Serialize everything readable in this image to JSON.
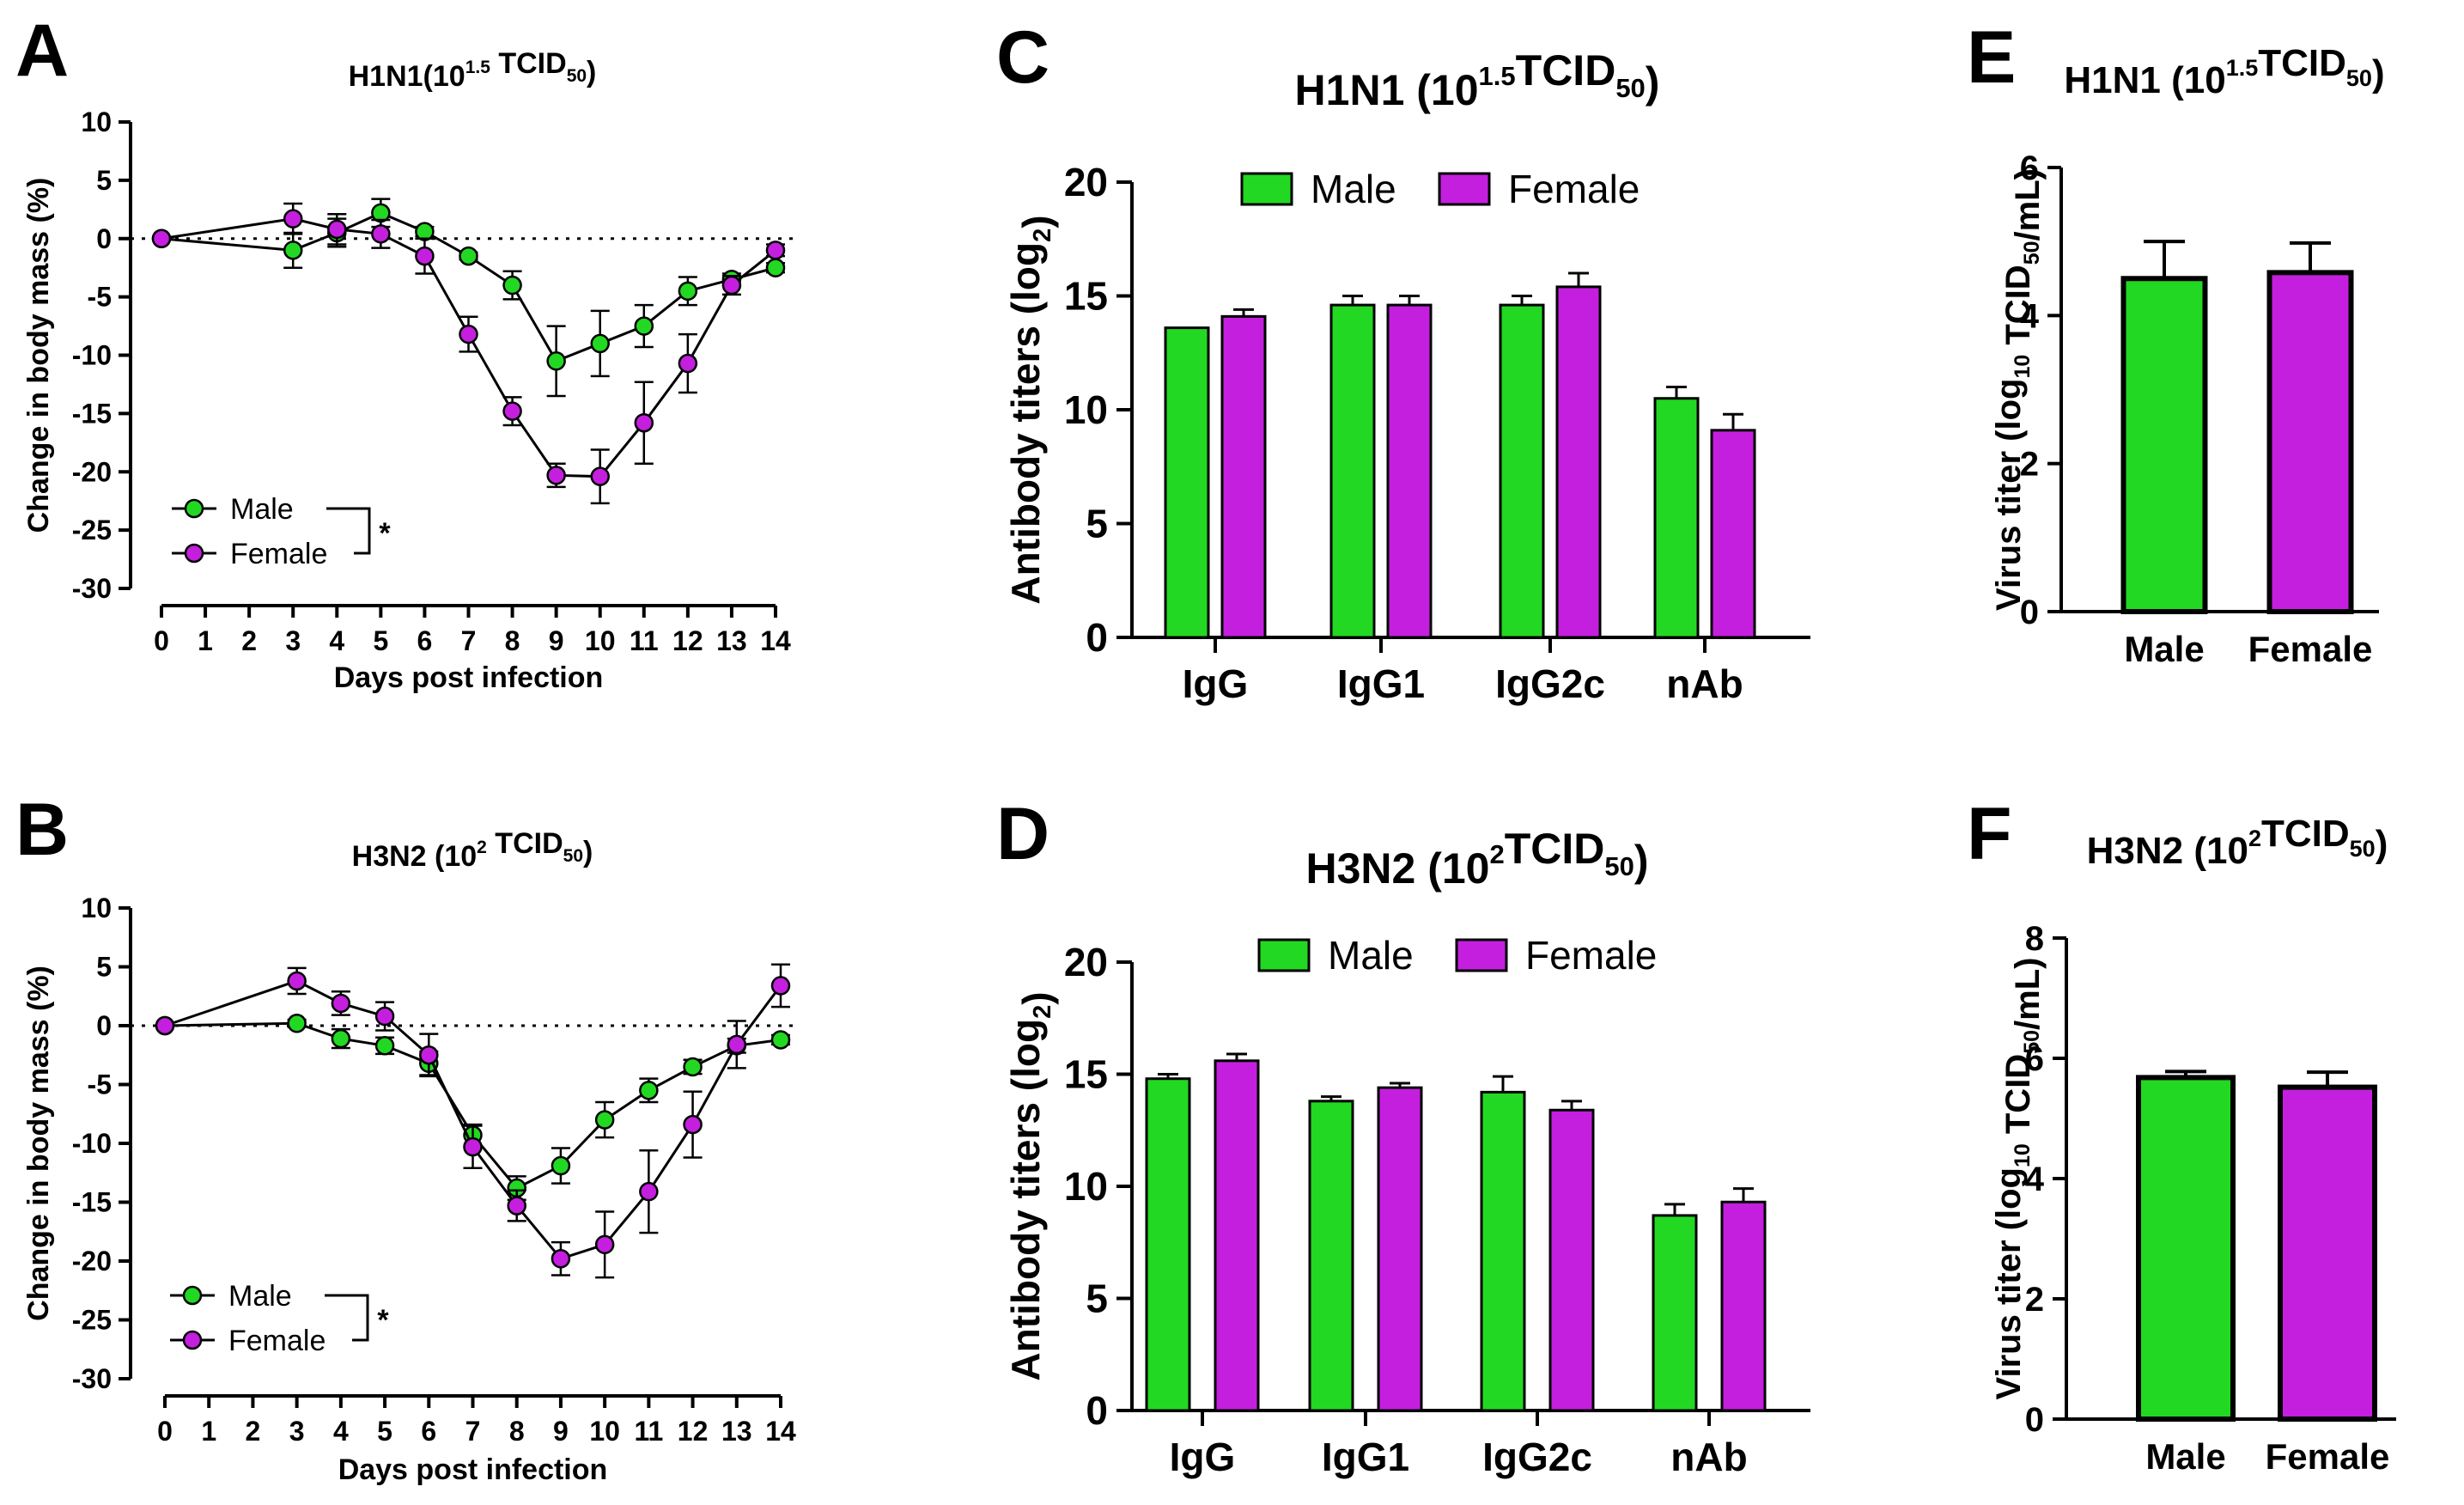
{
  "chart_data": [
    {
      "id": "A",
      "panel_label": "A",
      "type": "line",
      "title": "H1N1(10^1.5 TCID50)",
      "title_parts": {
        "pre": "H1N1(10",
        "sup": "1.5",
        "mid": " TCID",
        "sub": "50",
        "post": ")"
      },
      "xlabel": "Days post infection",
      "ylabel": "Change in body mass (%)",
      "xticks": [
        0,
        1,
        2,
        3,
        4,
        5,
        6,
        7,
        8,
        9,
        10,
        11,
        12,
        13,
        14
      ],
      "yticks": [
        10,
        5,
        0,
        -5,
        -10,
        -15,
        -20,
        -25,
        -30
      ],
      "ylim": [
        -30,
        10
      ],
      "xlim": [
        0,
        14
      ],
      "reference_line": 0,
      "series": [
        {
          "name": "Male",
          "color": "#22d822",
          "x": [
            0,
            3,
            4,
            5,
            6,
            7,
            8,
            9,
            10,
            11,
            12,
            13,
            14
          ],
          "y": [
            0,
            -1,
            0.5,
            2.2,
            0.6,
            -1.5,
            -4,
            -10.5,
            -9,
            -7.5,
            -4.5,
            -3.5,
            -2.5
          ],
          "err": [
            0,
            1.5,
            1.2,
            1.2,
            0.4,
            0.3,
            1.2,
            3,
            2.8,
            1.8,
            1.2,
            0.5,
            0.4
          ]
        },
        {
          "name": "Female",
          "color": "#c41fde",
          "x": [
            0,
            3,
            4,
            5,
            6,
            7,
            8,
            9,
            10,
            11,
            12,
            13,
            14
          ],
          "y": [
            0,
            1.7,
            0.8,
            0.4,
            -1.5,
            -8.2,
            -14.8,
            -20.3,
            -20.4,
            -15.8,
            -10.7,
            -4,
            -1
          ],
          "err": [
            0,
            1.3,
            1.3,
            1.2,
            1.5,
            1.5,
            1.2,
            1,
            2.3,
            3.5,
            2.5,
            0.8,
            0.5
          ]
        }
      ],
      "legend": {
        "entries": [
          "Male",
          "Female"
        ],
        "significance": "*",
        "position": "bottom-left"
      }
    },
    {
      "id": "B",
      "panel_label": "B",
      "type": "line",
      "title": "H3N2 (10^2 TCID50)",
      "title_parts": {
        "pre": "H3N2 (10",
        "sup": "2",
        "mid": " TCID",
        "sub": "50",
        "post": ")"
      },
      "xlabel": "Days post infection",
      "ylabel": "Change in body mass (%)",
      "xticks": [
        0,
        1,
        2,
        3,
        4,
        5,
        6,
        7,
        8,
        9,
        10,
        11,
        12,
        13,
        14
      ],
      "yticks": [
        10,
        5,
        0,
        -5,
        -10,
        -15,
        -20,
        -25,
        -30
      ],
      "ylim": [
        -30,
        10
      ],
      "xlim": [
        0,
        14
      ],
      "reference_line": 0,
      "series": [
        {
          "name": "Male",
          "color": "#22d822",
          "x": [
            0,
            3,
            4,
            5,
            6,
            7,
            8,
            9,
            10,
            11,
            12,
            13,
            14
          ],
          "y": [
            0,
            0.2,
            -1.1,
            -1.7,
            -3.2,
            -9.3,
            -13.8,
            -11.9,
            -8,
            -5.5,
            -3.5,
            -1.7,
            -1.2
          ],
          "err": [
            0,
            0.3,
            0.8,
            0.7,
            1,
            0.9,
            1,
            1.5,
            1.5,
            1,
            0.6,
            0.6,
            0.4
          ]
        },
        {
          "name": "Female",
          "color": "#c41fde",
          "x": [
            0,
            3,
            4,
            5,
            6,
            7,
            8,
            9,
            10,
            11,
            12,
            13,
            14
          ],
          "y": [
            0,
            3.8,
            1.9,
            0.8,
            -2.5,
            -10.3,
            -15.3,
            -19.8,
            -18.6,
            -14.1,
            -8.4,
            -1.6,
            3.4
          ],
          "err": [
            0,
            1.1,
            1,
            1.2,
            1.8,
            1.8,
            1.3,
            1.4,
            2.8,
            3.5,
            2.8,
            2,
            1.8
          ]
        }
      ],
      "legend": {
        "entries": [
          "Male",
          "Female"
        ],
        "significance": "*",
        "position": "bottom-left"
      }
    },
    {
      "id": "C",
      "panel_label": "C",
      "type": "bar",
      "title": "H1N1 (10^1.5TCID50)",
      "title_parts": {
        "pre": "H1N1 (10",
        "sup": "1.5",
        "mid": "TCID",
        "sub": "50",
        "post": ")"
      },
      "categories": [
        "IgG",
        "IgG1",
        "IgG2c",
        "nAb"
      ],
      "ylabel": "Antibody titers (log2)",
      "ylabel_parts": {
        "pre": "Antibody titers (log",
        "sub": "2",
        "post": ")"
      },
      "yticks": [
        0,
        5,
        10,
        15,
        20
      ],
      "ylim": [
        0,
        20
      ],
      "series": [
        {
          "name": "Male",
          "color": "#22d822",
          "values": [
            13.6,
            14.6,
            14.6,
            10.5
          ],
          "err": [
            0,
            0.4,
            0.4,
            0.5
          ]
        },
        {
          "name": "Female",
          "color": "#c41fde",
          "values": [
            14.1,
            14.6,
            15.4,
            9.1
          ],
          "err": [
            0.3,
            0.4,
            0.6,
            0.7
          ]
        }
      ],
      "legend": {
        "entries": [
          "Male",
          "Female"
        ],
        "position": "top"
      }
    },
    {
      "id": "D",
      "panel_label": "D",
      "type": "bar",
      "title": "H3N2 (10^2TCID50)",
      "title_parts": {
        "pre": "H3N2 (10",
        "sup": "2",
        "mid": "TCID",
        "sub": "50",
        "post": ")"
      },
      "categories": [
        "IgG",
        "IgG1",
        "IgG2c",
        "nAb"
      ],
      "ylabel": "Antibody titers (log2)",
      "ylabel_parts": {
        "pre": "Antibody titers (log",
        "sub": "2",
        "post": ")"
      },
      "yticks": [
        0,
        5,
        10,
        15,
        20
      ],
      "ylim": [
        0,
        20
      ],
      "series": [
        {
          "name": "Male",
          "color": "#22d822",
          "values": [
            14.8,
            13.8,
            14.2,
            8.7
          ],
          "err": [
            0.2,
            0.2,
            0.7,
            0.5
          ]
        },
        {
          "name": "Female",
          "color": "#c41fde",
          "values": [
            15.6,
            14.4,
            13.4,
            9.3
          ],
          "err": [
            0.3,
            0.2,
            0.4,
            0.6
          ]
        }
      ],
      "legend": {
        "entries": [
          "Male",
          "Female"
        ],
        "position": "top"
      }
    },
    {
      "id": "E",
      "panel_label": "E",
      "type": "bar",
      "title": "H1N1 (10^1.5TCID50)",
      "title_parts": {
        "pre": "H1N1 (10",
        "sup": "1.5",
        "mid": "TCID",
        "sub": "50",
        "post": ")"
      },
      "categories": [
        "Male",
        "Female"
      ],
      "colors": [
        "#22d822",
        "#c41fde"
      ],
      "values": [
        4.5,
        4.58
      ],
      "err": [
        0.5,
        0.4
      ],
      "ylabel": "Virus titer (log10 TCID50/mL)",
      "ylabel_parts": {
        "pre": "Virus titer (log",
        "sub1": "10",
        "mid": " TCID",
        "sub2": "50",
        "post": "/mL)"
      },
      "yticks": [
        0,
        2,
        4,
        6
      ],
      "ylim": [
        0,
        6
      ]
    },
    {
      "id": "F",
      "panel_label": "F",
      "type": "bar",
      "title": "H3N2 (10^2TCID50)",
      "title_parts": {
        "pre": "H3N2 (10",
        "sup": "2",
        "mid": "TCID",
        "sub": "50",
        "post": ")"
      },
      "categories": [
        "Male",
        "Female"
      ],
      "colors": [
        "#22d822",
        "#c41fde"
      ],
      "values": [
        5.68,
        5.52
      ],
      "err": [
        0.1,
        0.25
      ],
      "ylabel": "Virus titer (log10 TCID50/mL)",
      "ylabel_parts": {
        "pre": "Virus titer (log",
        "sub1": "10",
        "mid": " TCID",
        "sub2": "50",
        "post": "/mL)"
      },
      "yticks": [
        0,
        2,
        4,
        6,
        8
      ],
      "ylim": [
        0,
        8
      ]
    }
  ]
}
